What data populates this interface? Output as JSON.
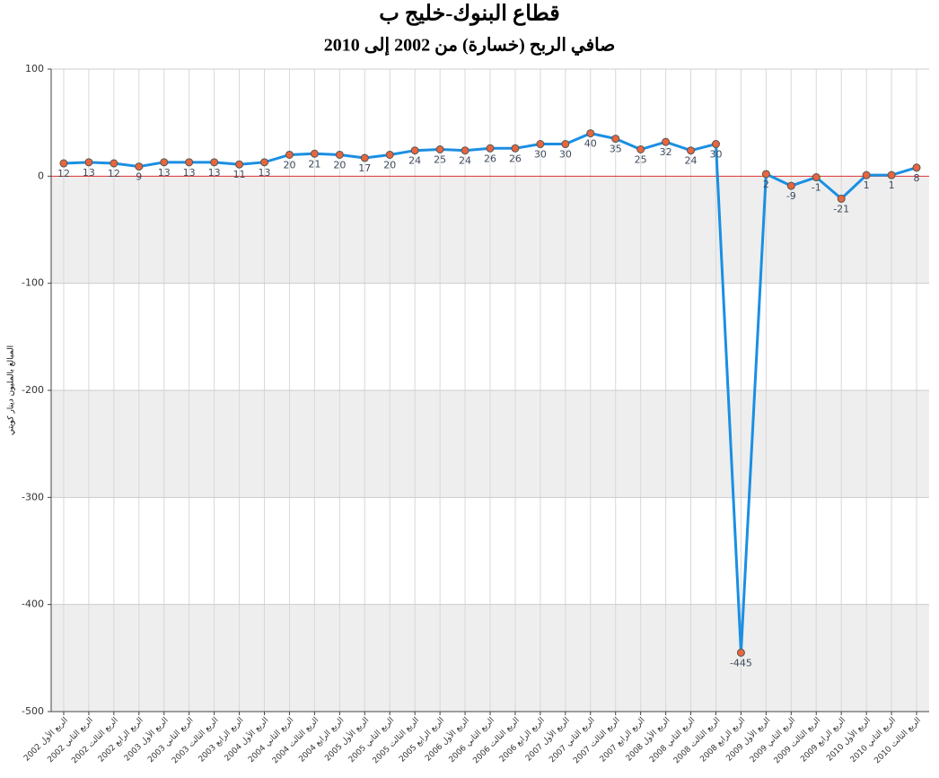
{
  "chart_data": {
    "type": "line",
    "title": "قطاع البنوك-خليج ب",
    "subtitle": "صافي الربح (خسارة) من 2002 إلى 2010",
    "y_label": "المبالغ بالمليون دينار كويتي",
    "categories": [
      "الربع الأول 2002",
      "الربع الثاني 2002",
      "الربع الثالث 2002",
      "الربع الرابع 2002",
      "الربع الأول 2003",
      "الربع الثاني 2003",
      "الربع الثالث 2003",
      "الربع الرابع 2003",
      "الربع الأول 2004",
      "الربع الثاني 2004",
      "الربع الثالث 2004",
      "الربع الرابع 2004",
      "الربع الأول 2005",
      "الربع الثاني 2005",
      "الربع الثالث 2005",
      "الربع الرابع 2005",
      "الربع الأول 2006",
      "الربع الثاني 2006",
      "الربع الثالث 2006",
      "الربع الرابع 2006",
      "الربع الأول 2007",
      "الربع الثاني 2007",
      "الربع الثالث 2007",
      "الربع الرابع 2007",
      "الربع الأول 2008",
      "الربع الثاني 2008",
      "الربع الثالث 2008",
      "الربع الرابع 2008",
      "الربع الأول 2009",
      "الربع الثاني 2009",
      "الربع الثالث 2009",
      "الربع الرابع 2009",
      "الربع الأول 2010",
      "الربع الثاني 2010",
      "الربع الثالث 2010"
    ],
    "values": [
      12,
      13,
      12,
      9,
      13,
      13,
      13,
      11,
      13,
      20,
      21,
      20,
      17,
      20,
      24,
      25,
      24,
      26,
      26,
      30,
      30,
      40,
      35,
      25,
      32,
      24,
      30,
      -445,
      2,
      -9,
      -1,
      -21,
      1,
      1,
      8
    ],
    "color": "#1a8fe3",
    "marker_color": "#e8663d",
    "ylim": [
      -500,
      100
    ],
    "yticks": [
      -500,
      -400,
      -300,
      -200,
      -100,
      0,
      100
    ],
    "grid": true
  }
}
